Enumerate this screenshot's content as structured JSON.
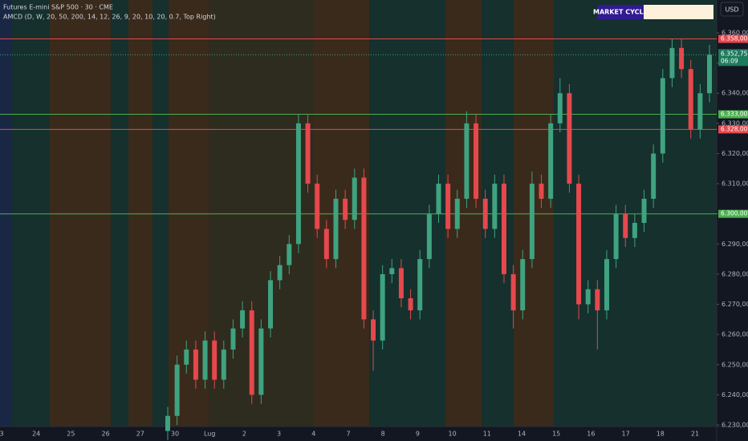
{
  "chart_data": {
    "type": "candlestick",
    "title": "Futures E-mini S&P 500 · 30 · CME",
    "indicator": "AMCD (D, W, 20, 50, 200, 14, 12, 26, 9, 20, 10, 20, 0.7, Top Right)",
    "cycle_label": "MARKET CYCLE",
    "currency": "USD",
    "categories": [
      "3",
      "24",
      "25",
      "26",
      "27",
      "30",
      "Lug",
      "2",
      "3",
      "4",
      "7",
      "8",
      "9",
      "10",
      "11",
      "14",
      "15",
      "16",
      "17",
      "18",
      "21"
    ],
    "ylim": [
      6230,
      6360
    ],
    "yticks": [
      {
        "value": 6230,
        "label": "6.230,00"
      },
      {
        "value": 6240,
        "label": "6.240,00"
      },
      {
        "value": 6250,
        "label": "6.250,00"
      },
      {
        "value": 6260,
        "label": "6.260,00"
      },
      {
        "value": 6270,
        "label": "6.270,00"
      },
      {
        "value": 6280,
        "label": "6.280,00"
      },
      {
        "value": 6290,
        "label": "6.290,00"
      },
      {
        "value": 6300,
        "label": "6.300,00"
      },
      {
        "value": 6310,
        "label": "6.310,00"
      },
      {
        "value": 6320,
        "label": "6.320,00"
      },
      {
        "value": 6330,
        "label": "6.330,00"
      },
      {
        "value": 6340,
        "label": "6.340,00"
      },
      {
        "value": 6350,
        "label": "6.350,00"
      },
      {
        "value": 6360,
        "label": "6.360,00"
      }
    ],
    "up_color": "#3fa37f",
    "down_color": "#e5484d",
    "open": [
      6228,
      6233,
      6250,
      6255,
      6245,
      6258,
      6245,
      6255,
      6262,
      6268,
      6240,
      6262,
      6278,
      6283,
      6290,
      6330,
      6310,
      6295,
      6285,
      6305,
      6298,
      6312,
      6265,
      6258,
      6280,
      6282,
      6272,
      6268,
      6285,
      6300,
      6310,
      6295,
      6305,
      6330,
      6305,
      6295,
      6310,
      6280,
      6268,
      6285,
      6310,
      6305,
      6330,
      6340,
      6310,
      6270,
      6275,
      6268,
      6285,
      6300,
      6292,
      6297,
      6305,
      6320,
      6345,
      6355,
      6348,
      6328,
      6340
    ],
    "high": [
      6236,
      6253,
      6258,
      6258,
      6261,
      6261,
      6258,
      6265,
      6271,
      6271,
      6265,
      6281,
      6286,
      6293,
      6333,
      6333,
      6313,
      6298,
      6308,
      6308,
      6315,
      6315,
      6268,
      6283,
      6285,
      6285,
      6275,
      6288,
      6303,
      6313,
      6313,
      6308,
      6334,
      6333,
      6308,
      6313,
      6313,
      6283,
      6288,
      6314,
      6313,
      6333,
      6345,
      6343,
      6313,
      6278,
      6278,
      6288,
      6303,
      6303,
      6300,
      6308,
      6323,
      6348,
      6358,
      6358,
      6351,
      6343,
      6356
    ],
    "low": [
      6225,
      6230,
      6247,
      6242,
      6242,
      6242,
      6242,
      6252,
      6259,
      6237,
      6237,
      6259,
      6275,
      6280,
      6287,
      6307,
      6292,
      6282,
      6282,
      6295,
      6295,
      6262,
      6248,
      6255,
      6277,
      6269,
      6265,
      6265,
      6282,
      6297,
      6292,
      6292,
      6302,
      6302,
      6292,
      6292,
      6277,
      6262,
      6265,
      6282,
      6302,
      6302,
      6327,
      6307,
      6265,
      6267,
      6255,
      6265,
      6282,
      6289,
      6289,
      6294,
      6302,
      6317,
      6342,
      6345,
      6325,
      6325,
      6337
    ],
    "close": [
      6233,
      6250,
      6255,
      6245,
      6258,
      6245,
      6255,
      6262,
      6268,
      6240,
      6262,
      6278,
      6283,
      6290,
      6330,
      6310,
      6295,
      6285,
      6305,
      6298,
      6312,
      6265,
      6258,
      6280,
      6282,
      6272,
      6268,
      6285,
      6300,
      6310,
      6295,
      6305,
      6330,
      6305,
      6295,
      6310,
      6280,
      6268,
      6285,
      6310,
      6305,
      6330,
      6340,
      6310,
      6270,
      6275,
      6268,
      6285,
      6300,
      6292,
      6297,
      6305,
      6320,
      6345,
      6355,
      6348,
      6328,
      6340,
      6352.75
    ],
    "levels": [
      {
        "value": 6358,
        "label": "6.358,00",
        "color": "#e5484d"
      },
      {
        "value": 6333,
        "label": "6.333,00",
        "color": "#4caf50"
      },
      {
        "value": 6328,
        "label": "6.328,00",
        "color": "#e5484d"
      },
      {
        "value": 6300,
        "label": "6.300,00",
        "color": "#4caf50"
      }
    ],
    "last_price": {
      "value": 6352.75,
      "label": "6.352,75"
    },
    "countdown": "06:09"
  }
}
